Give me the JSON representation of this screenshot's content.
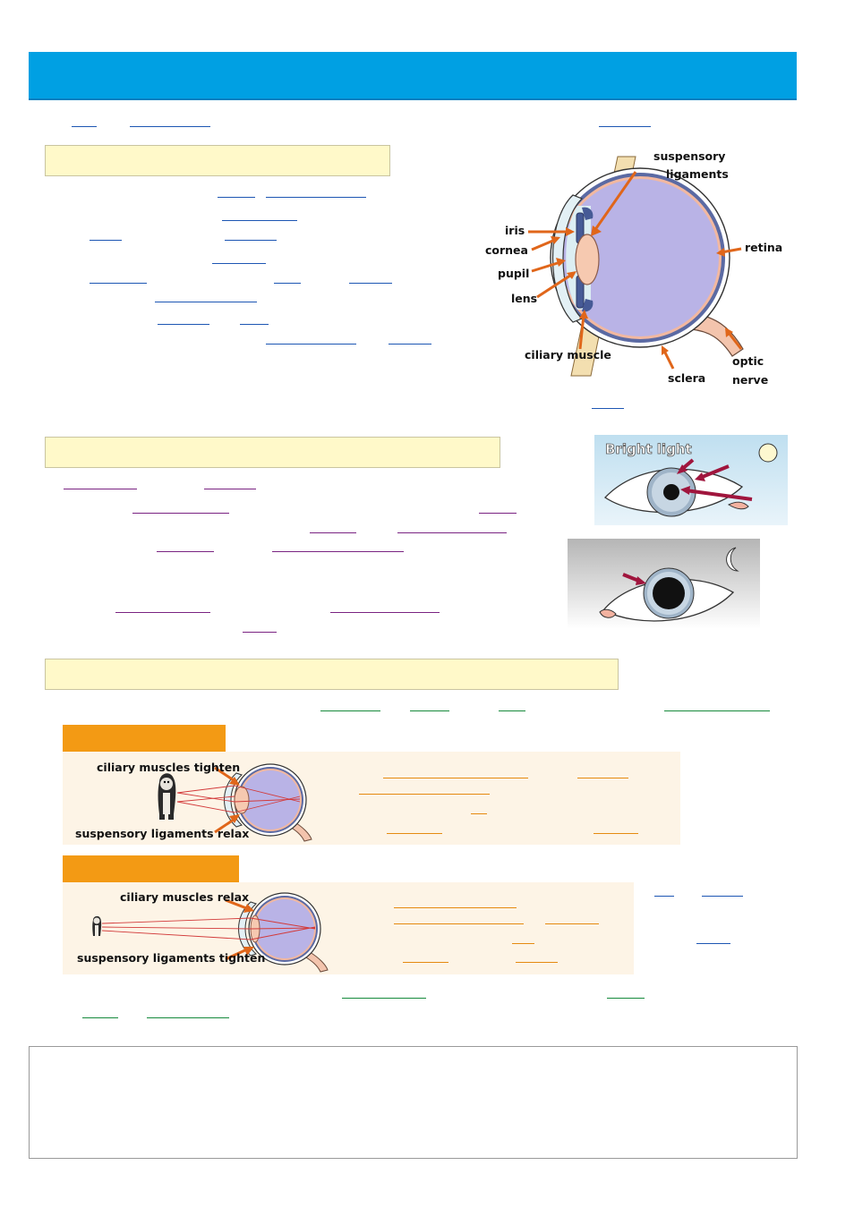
{
  "eye_diagram": {
    "labels": {
      "suspensory_ligaments_line1": "suspensory",
      "suspensory_ligaments_line2": "ligaments",
      "iris": "iris",
      "cornea": "cornea",
      "pupil": "pupil",
      "lens": "lens",
      "ciliary_muscle": "ciliary muscle",
      "retina": "retina",
      "sclera": "sclera",
      "optic_nerve_line1": "optic",
      "optic_nerve_line2": "nerve"
    }
  },
  "pupil_images": {
    "bright_light_label": "Bright light"
  },
  "focusing": {
    "near": {
      "ciliary_label": "ciliary muscles tighten",
      "ligament_label": "suspensory ligaments relax"
    },
    "far": {
      "ciliary_label": "ciliary muscles relax",
      "ligament_label": "suspensory ligaments tighten"
    }
  },
  "colors": {
    "banner": "#00a0e3",
    "heading_box": "#fff9c9",
    "tab": "#f39a14",
    "panel": "#fdf4e6",
    "blank_blue": "#1d56b3",
    "blank_purple": "#7a2382",
    "blank_green": "#168a3c",
    "blank_orange": "#e58a10",
    "eyeball": "#b9b3e6",
    "arrow": "#e0661a",
    "pupil_arrow": "#a0153d"
  }
}
